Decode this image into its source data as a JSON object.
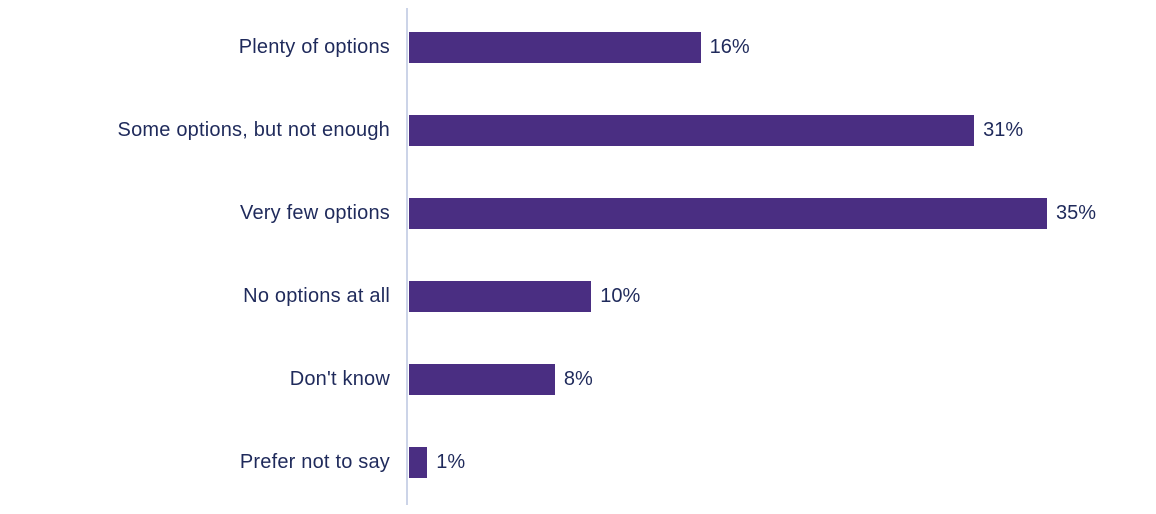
{
  "chart_data": {
    "type": "bar",
    "orientation": "horizontal",
    "title": "",
    "xlabel": "",
    "ylabel": "",
    "categories": [
      "Plenty of options",
      "Some options, but not enough",
      "Very few options",
      "No options at all",
      "Don't know",
      "Prefer not to say"
    ],
    "values": [
      16,
      31,
      35,
      10,
      8,
      1
    ],
    "value_labels": [
      "16%",
      "31%",
      "35%",
      "10%",
      "8%",
      "1%"
    ],
    "xlim": [
      0,
      35
    ],
    "grid": false,
    "legend": false,
    "colors": {
      "bar": "#4A2E82",
      "category_text": "#1F2A5B",
      "value_text": "#1F2A5B",
      "axis_line": "#CCD4E8",
      "background": "#FFFFFF"
    }
  }
}
